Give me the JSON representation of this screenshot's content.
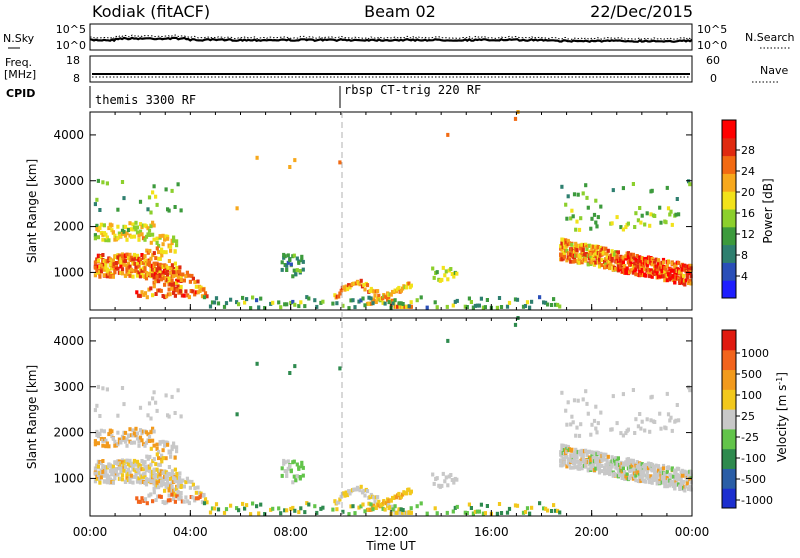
{
  "header": {
    "station": "Kodiak (fitACF)",
    "beam": "Beam 02",
    "date": "22/Dec/2015"
  },
  "noise_panel": {
    "left_label": "N.Sky",
    "right_label": "N.Search",
    "left_ticks": [
      "10^5",
      "10^0"
    ],
    "right_ticks": [
      "10^5",
      "10^0"
    ]
  },
  "freq_panel": {
    "left_label_line1": "Freq.",
    "left_label_line2": "[MHz]",
    "right_label": "Nave",
    "left_ticks": [
      "18",
      "8"
    ],
    "right_ticks": [
      "60",
      "0"
    ]
  },
  "cpid_panel": {
    "label": "CPID",
    "segments": [
      {
        "name": "themis 3300 RF",
        "start_h": 0
      },
      {
        "name": "rbsp CT-trig 220 RF",
        "start_h": 9.9
      }
    ]
  },
  "chart_data": [
    {
      "type": "heatmap",
      "panel": "power",
      "ylabel": "Slant Range [km]",
      "ylim": [
        180,
        4500
      ],
      "xlim_hours": [
        0,
        24
      ],
      "yticks": [
        "1000",
        "2000",
        "3000",
        "4000"
      ],
      "colorbar": {
        "label": "Power [dB]",
        "ticks": [
          "4",
          "8",
          "12",
          "16",
          "20",
          "24",
          "28"
        ],
        "colors": [
          "#1f1fff",
          "#2a4fb8",
          "#2e7f6f",
          "#3c9a3c",
          "#8ccf2c",
          "#f2e21a",
          "#f7a81c",
          "#f26a12",
          "#e02a10",
          "#ff0000"
        ]
      },
      "features": [
        {
          "name": "morning band",
          "h0": 0.1,
          "h1": 3.5,
          "r0": 700,
          "r1": 2200,
          "val": 18
        },
        {
          "name": "evening band",
          "h0": 18.7,
          "h1": 23.9,
          "r0": 700,
          "r1": 1900,
          "val": 20
        },
        {
          "name": "near-range echoes",
          "h0": 9.6,
          "h1": 12.8,
          "r0": 200,
          "r1": 800,
          "val": 14
        }
      ]
    },
    {
      "type": "heatmap",
      "panel": "velocity",
      "ylabel": "Slant Range [km]",
      "ylim": [
        180,
        4500
      ],
      "xlim_hours": [
        0,
        24
      ],
      "yticks": [
        "1000",
        "2000",
        "3000",
        "4000"
      ],
      "colorbar": {
        "label": "Velocity [m s-1]",
        "ticks": [
          "1000",
          "500",
          "100",
          "25",
          "-25",
          "-100",
          "-500",
          "-1000"
        ],
        "colors": [
          "#1c2fcf",
          "#2a5ea6",
          "#2e8a4e",
          "#62c44a",
          "#c8c8c8",
          "#f2c81c",
          "#f29a1c",
          "#f2641c",
          "#e01a10"
        ]
      }
    }
  ],
  "x_axis": {
    "label": "Time UT",
    "ticks": [
      "00:00",
      "04:00",
      "08:00",
      "12:00",
      "16:00",
      "20:00",
      "00:00"
    ]
  }
}
